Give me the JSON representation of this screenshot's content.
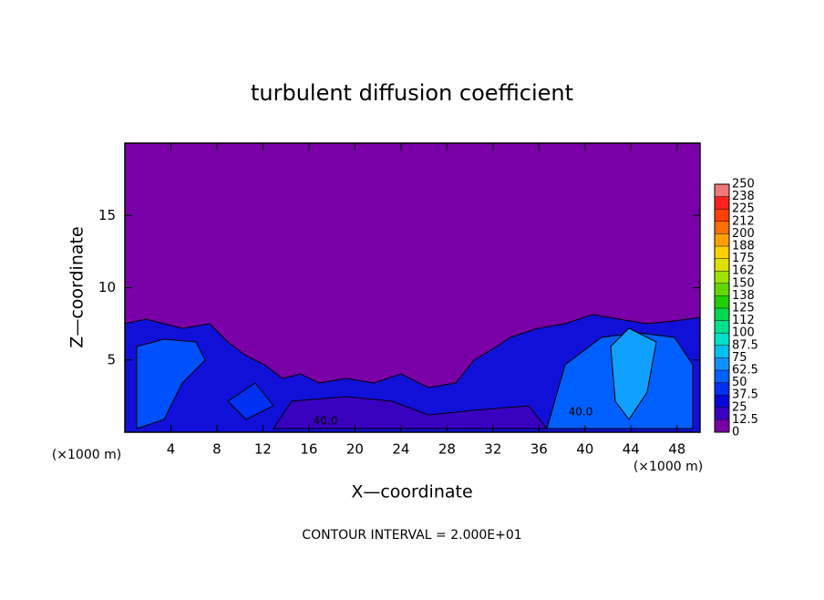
{
  "chart_data": {
    "type": "contour",
    "title": "turbulent diffusion coefficient",
    "x_label": "X—coordinate",
    "y_label": "Z—coordinate",
    "x_unit": "(×1000 m)",
    "y_unit": "(×1000 m)",
    "footer": "CONTOUR INTERVAL = 2.000E+01",
    "contour_labels": [
      "40.0",
      "40.0"
    ],
    "xlim": [
      0,
      50
    ],
    "xticks": [
      4,
      8,
      12,
      16,
      20,
      24,
      28,
      32,
      36,
      40,
      44,
      48
    ],
    "ylim": [
      0,
      20
    ],
    "yticks": [
      5,
      10,
      15
    ],
    "colorbar_levels": [
      0,
      12.5,
      25,
      37.5,
      50,
      62.5,
      75,
      87.5,
      100,
      112,
      125,
      138,
      150,
      162,
      175,
      188,
      200,
      212,
      225,
      238,
      250
    ],
    "colorbar_colors": [
      "#7a00a8",
      "#3a00c0",
      "#0808d8",
      "#0030f0",
      "#0060ff",
      "#1090ff",
      "#00c0f0",
      "#00e0c8",
      "#00e090",
      "#00d850",
      "#20d000",
      "#60d800",
      "#a0e000",
      "#e0e000",
      "#ffd000",
      "#ffa000",
      "#ff7000",
      "#ff4000",
      "#ff2020",
      "#f07878"
    ]
  }
}
